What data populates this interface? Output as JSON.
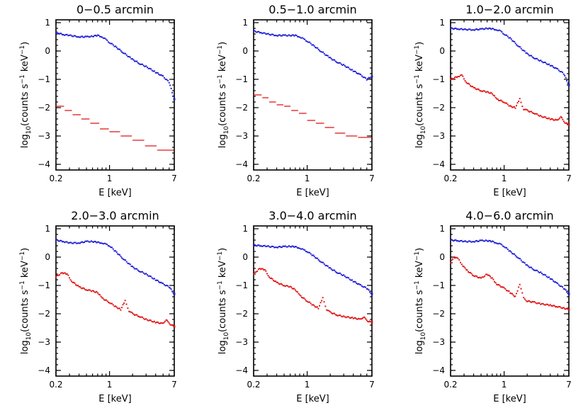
{
  "chart_data": [
    {
      "type": "scatter",
      "title": "0−0.5 arcmin",
      "xlabel": "E [keV]",
      "ylabel": "log10(counts s^-1 keV^-1)",
      "xscale": "log",
      "xlim": [
        0.2,
        7
      ],
      "ylim": [
        -4.2,
        1.1
      ],
      "xticks": [
        "0.2",
        "1",
        "7"
      ],
      "yticks": [
        "1",
        "0",
        "−1",
        "−2",
        "−3",
        "−4"
      ],
      "series": [
        {
          "color": "#1f1fd6",
          "style": "points",
          "x": [
            0.2,
            0.25,
            0.3,
            0.4,
            0.5,
            0.6,
            0.7,
            0.8,
            0.9,
            1.0,
            1.2,
            1.5,
            2.0,
            2.5,
            3.0,
            4.0,
            5.0,
            6.0,
            7.0
          ],
          "y": [
            0.65,
            0.58,
            0.55,
            0.5,
            0.5,
            0.52,
            0.55,
            0.5,
            0.4,
            0.3,
            0.15,
            -0.05,
            -0.3,
            -0.45,
            -0.55,
            -0.75,
            -0.9,
            -1.1,
            -1.7
          ]
        },
        {
          "color": "#e01818",
          "style": "steps",
          "x": [
            0.2,
            0.26,
            0.33,
            0.43,
            0.56,
            0.75,
            1.0,
            1.4,
            2.0,
            2.9,
            4.2,
            7.0
          ],
          "y": [
            -1.95,
            -2.1,
            -2.25,
            -2.4,
            -2.55,
            -2.75,
            -2.85,
            -3.0,
            -3.15,
            -3.35,
            -3.5,
            -3.6
          ]
        }
      ]
    },
    {
      "type": "scatter",
      "title": "0.5−1.0 arcmin",
      "xlabel": "E [keV]",
      "ylabel": "log10(counts s^-1 keV^-1)",
      "xscale": "log",
      "xlim": [
        0.2,
        7
      ],
      "ylim": [
        -4.2,
        1.1
      ],
      "xticks": [
        "0.2",
        "1",
        "7"
      ],
      "yticks": [
        "1",
        "0",
        "−1",
        "−2",
        "−3",
        "−4"
      ],
      "series": [
        {
          "color": "#1f1fd6",
          "style": "points",
          "x": [
            0.2,
            0.25,
            0.3,
            0.4,
            0.5,
            0.6,
            0.7,
            0.8,
            0.9,
            1.0,
            1.2,
            1.5,
            2.0,
            2.5,
            3.0,
            4.0,
            5.0,
            6.0,
            7.0
          ],
          "y": [
            0.7,
            0.65,
            0.6,
            0.55,
            0.55,
            0.55,
            0.55,
            0.5,
            0.42,
            0.35,
            0.2,
            0.0,
            -0.25,
            -0.4,
            -0.5,
            -0.7,
            -0.85,
            -1.0,
            -0.9
          ]
        },
        {
          "color": "#e01818",
          "style": "steps",
          "x": [
            0.2,
            0.26,
            0.32,
            0.4,
            0.5,
            0.62,
            0.78,
            1.0,
            1.3,
            1.7,
            2.3,
            3.2,
            4.6,
            7.0
          ],
          "y": [
            -1.55,
            -1.65,
            -1.8,
            -1.9,
            -1.95,
            -2.1,
            -2.2,
            -2.45,
            -2.55,
            -2.7,
            -2.9,
            -3.0,
            -3.05,
            -3.2
          ]
        }
      ]
    },
    {
      "type": "scatter",
      "title": "1.0−2.0 arcmin",
      "xlabel": "E [keV]",
      "ylabel": "log10(counts s^-1 keV^-1)",
      "xscale": "log",
      "xlim": [
        0.2,
        7
      ],
      "ylim": [
        -4.2,
        1.1
      ],
      "xticks": [
        "0.2",
        "1",
        "7"
      ],
      "yticks": [
        "1",
        "0",
        "−1",
        "−2",
        "−3",
        "−4"
      ],
      "series": [
        {
          "color": "#1f1fd6",
          "style": "points",
          "x": [
            0.2,
            0.25,
            0.3,
            0.4,
            0.5,
            0.6,
            0.7,
            0.8,
            0.9,
            1.0,
            1.2,
            1.5,
            2.0,
            2.5,
            3.0,
            4.0,
            5.0,
            6.0,
            7.0
          ],
          "y": [
            0.8,
            0.78,
            0.76,
            0.75,
            0.77,
            0.8,
            0.78,
            0.75,
            0.7,
            0.6,
            0.45,
            0.2,
            -0.1,
            -0.25,
            -0.35,
            -0.5,
            -0.65,
            -0.8,
            -1.2
          ]
        },
        {
          "color": "#e01818",
          "style": "points",
          "x": [
            0.2,
            0.25,
            0.28,
            0.32,
            0.4,
            0.5,
            0.6,
            0.7,
            0.8,
            1.0,
            1.2,
            1.4,
            1.6,
            1.8,
            2.0,
            2.5,
            3.0,
            4.0,
            5.0,
            5.5,
            6.0,
            7.0
          ],
          "y": [
            -1.0,
            -0.9,
            -0.85,
            -1.1,
            -1.3,
            -1.4,
            -1.45,
            -1.5,
            -1.7,
            -1.8,
            -1.95,
            -2.0,
            -1.7,
            -2.05,
            -2.1,
            -2.2,
            -2.3,
            -2.4,
            -2.45,
            -2.3,
            -2.5,
            -2.6
          ]
        }
      ]
    },
    {
      "type": "scatter",
      "title": "2.0−3.0 arcmin",
      "xlabel": "E [keV]",
      "ylabel": "log10(counts s^-1 keV^-1)",
      "xscale": "log",
      "xlim": [
        0.2,
        7
      ],
      "ylim": [
        -4.2,
        1.1
      ],
      "xticks": [
        "0.2",
        "1",
        "7"
      ],
      "yticks": [
        "1",
        "0",
        "−1",
        "−2",
        "−3",
        "−4"
      ],
      "series": [
        {
          "color": "#1f1fd6",
          "style": "points",
          "x": [
            0.2,
            0.25,
            0.3,
            0.4,
            0.5,
            0.6,
            0.7,
            0.8,
            0.9,
            1.0,
            1.2,
            1.5,
            2.0,
            2.5,
            3.0,
            4.0,
            5.0,
            6.0,
            7.0
          ],
          "y": [
            0.6,
            0.55,
            0.5,
            0.5,
            0.55,
            0.55,
            0.52,
            0.5,
            0.45,
            0.4,
            0.2,
            -0.05,
            -0.35,
            -0.5,
            -0.6,
            -0.8,
            -0.95,
            -1.05,
            -1.3
          ]
        },
        {
          "color": "#e01818",
          "style": "points",
          "x": [
            0.2,
            0.24,
            0.28,
            0.32,
            0.4,
            0.5,
            0.6,
            0.7,
            0.8,
            1.0,
            1.2,
            1.4,
            1.6,
            1.8,
            2.0,
            2.5,
            3.0,
            4.0,
            5.0,
            5.5,
            6.0,
            7.0
          ],
          "y": [
            -0.7,
            -0.55,
            -0.6,
            -0.85,
            -1.05,
            -1.15,
            -1.2,
            -1.25,
            -1.45,
            -1.6,
            -1.75,
            -1.85,
            -1.55,
            -1.9,
            -2.0,
            -2.1,
            -2.2,
            -2.3,
            -2.35,
            -2.2,
            -2.35,
            -2.45
          ]
        }
      ]
    },
    {
      "type": "scatter",
      "title": "3.0−4.0 arcmin",
      "xlabel": "E [keV]",
      "ylabel": "log10(counts s^-1 keV^-1)",
      "xscale": "log",
      "xlim": [
        0.2,
        7
      ],
      "ylim": [
        -4.2,
        1.1
      ],
      "xticks": [
        "0.2",
        "1",
        "7"
      ],
      "yticks": [
        "1",
        "0",
        "−1",
        "−2",
        "−3",
        "−4"
      ],
      "series": [
        {
          "color": "#1f1fd6",
          "style": "points",
          "x": [
            0.2,
            0.25,
            0.3,
            0.4,
            0.5,
            0.6,
            0.7,
            0.8,
            0.9,
            1.0,
            1.2,
            1.5,
            2.0,
            2.5,
            3.0,
            4.0,
            5.0,
            6.0,
            7.0
          ],
          "y": [
            0.42,
            0.4,
            0.38,
            0.35,
            0.37,
            0.38,
            0.36,
            0.32,
            0.25,
            0.2,
            0.05,
            -0.15,
            -0.4,
            -0.55,
            -0.65,
            -0.85,
            -1.0,
            -1.1,
            -1.3
          ]
        },
        {
          "color": "#e01818",
          "style": "points",
          "x": [
            0.2,
            0.24,
            0.28,
            0.32,
            0.4,
            0.5,
            0.6,
            0.7,
            0.8,
            1.0,
            1.2,
            1.4,
            1.6,
            1.8,
            2.0,
            2.5,
            3.0,
            4.0,
            5.0,
            5.5,
            6.0,
            7.0
          ],
          "y": [
            -0.6,
            -0.4,
            -0.45,
            -0.7,
            -0.9,
            -1.0,
            -1.05,
            -1.15,
            -1.35,
            -1.55,
            -1.7,
            -1.8,
            -1.45,
            -1.85,
            -1.95,
            -2.05,
            -2.1,
            -2.15,
            -2.2,
            -2.1,
            -2.25,
            -2.3
          ]
        }
      ]
    },
    {
      "type": "scatter",
      "title": "4.0−6.0 arcmin",
      "xlabel": "E [keV]",
      "ylabel": "log10(counts s^-1 keV^-1)",
      "xscale": "log",
      "xlim": [
        0.2,
        7
      ],
      "ylim": [
        -4.2,
        1.1
      ],
      "xticks": [
        "0.2",
        "1",
        "7"
      ],
      "yticks": [
        "1",
        "0",
        "−1",
        "−2",
        "−3",
        "−4"
      ],
      "series": [
        {
          "color": "#1f1fd6",
          "style": "points",
          "x": [
            0.2,
            0.25,
            0.3,
            0.4,
            0.5,
            0.6,
            0.7,
            0.8,
            0.9,
            1.0,
            1.2,
            1.5,
            2.0,
            2.5,
            3.0,
            4.0,
            5.0,
            6.0,
            7.0
          ],
          "y": [
            0.6,
            0.58,
            0.55,
            0.55,
            0.58,
            0.58,
            0.55,
            0.5,
            0.45,
            0.38,
            0.2,
            0.0,
            -0.3,
            -0.45,
            -0.55,
            -0.75,
            -0.95,
            -1.1,
            -1.3
          ]
        },
        {
          "color": "#e01818",
          "style": "points",
          "x": [
            0.2,
            0.22,
            0.25,
            0.28,
            0.32,
            0.4,
            0.5,
            0.6,
            0.7,
            0.8,
            1.0,
            1.2,
            1.4,
            1.6,
            1.8,
            2.0,
            2.5,
            3.0,
            4.0,
            5.0,
            6.0,
            7.0
          ],
          "y": [
            -0.2,
            0.0,
            -0.05,
            -0.25,
            -0.45,
            -0.65,
            -0.75,
            -0.6,
            -0.75,
            -0.95,
            -1.1,
            -1.25,
            -1.4,
            -0.95,
            -1.45,
            -1.55,
            -1.6,
            -1.65,
            -1.7,
            -1.75,
            -1.8,
            -1.85
          ]
        }
      ]
    }
  ]
}
